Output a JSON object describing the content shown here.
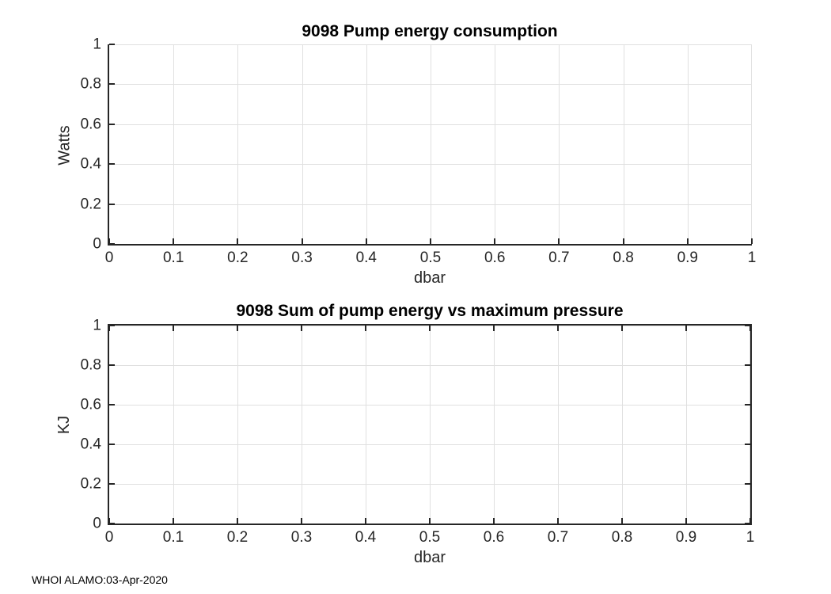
{
  "figure": {
    "footer": "WHOI ALAMO:03-Apr-2020"
  },
  "colors": {
    "background": "#ffffff",
    "axis": "#262626",
    "grid": "#e0e0e0",
    "title": "#000000",
    "tick_text": "#262626"
  },
  "chart_data": [
    {
      "type": "line",
      "title": "9098 Pump energy consumption",
      "xlabel": "dbar",
      "ylabel": "Watts",
      "xlim": [
        0,
        1
      ],
      "ylim": [
        0,
        1
      ],
      "xticks": [
        0,
        0.1,
        0.2,
        0.3,
        0.4,
        0.5,
        0.6,
        0.7,
        0.8,
        0.9,
        1
      ],
      "xtick_labels": [
        "0",
        "0.1",
        "0.2",
        "0.3",
        "0.4",
        "0.5",
        "0.6",
        "0.7",
        "0.8",
        "0.9",
        "1"
      ],
      "yticks": [
        0,
        0.2,
        0.4,
        0.6,
        0.8,
        1
      ],
      "ytick_labels": [
        "0",
        "0.2",
        "0.4",
        "0.6",
        "0.8",
        "1"
      ],
      "grid": true,
      "box": false,
      "legend": null,
      "series": []
    },
    {
      "type": "line",
      "title": "9098 Sum of pump energy vs maximum pressure",
      "xlabel": "dbar",
      "ylabel": "KJ",
      "xlim": [
        0,
        1
      ],
      "ylim": [
        0,
        1
      ],
      "xticks": [
        0,
        0.1,
        0.2,
        0.3,
        0.4,
        0.5,
        0.6,
        0.7,
        0.8,
        0.9,
        1
      ],
      "xtick_labels": [
        "0",
        "0.1",
        "0.2",
        "0.3",
        "0.4",
        "0.5",
        "0.6",
        "0.7",
        "0.8",
        "0.9",
        "1"
      ],
      "yticks": [
        0,
        0.2,
        0.4,
        0.6,
        0.8,
        1
      ],
      "ytick_labels": [
        "0",
        "0.2",
        "0.4",
        "0.6",
        "0.8",
        "1"
      ],
      "grid": true,
      "box": true,
      "legend": null,
      "series": []
    }
  ]
}
